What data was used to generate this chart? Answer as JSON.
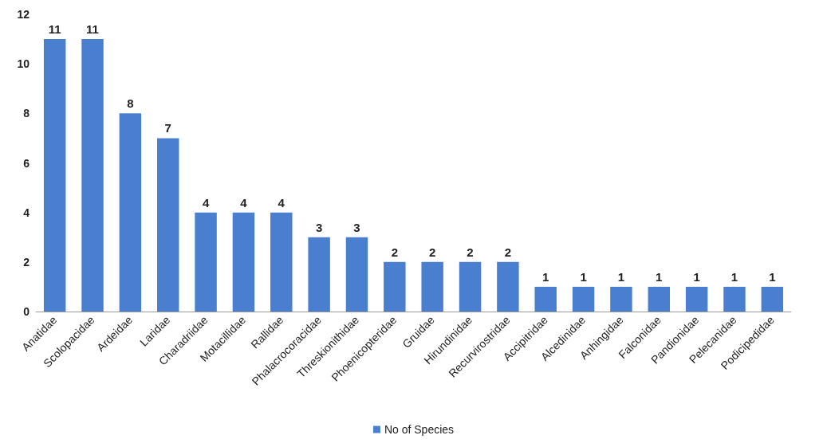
{
  "chart_data": {
    "type": "bar",
    "categories": [
      "Anatidae",
      "Scolopacidae",
      "Ardeidae",
      "Laridae",
      "Charadriidae",
      "Motacillidae",
      "Rallidae",
      "Phalacrocoracidae",
      "Threskionithidae",
      "Phoenicopteridae",
      "Gruidae",
      "Hirundinidae",
      "Recurvirostridae",
      "Accipitridae",
      "Alcedinidae",
      "Anhingidae",
      "Falconidae",
      "Pandionidae",
      "Pelecanidae",
      "Podicipedidae"
    ],
    "series": [
      {
        "name": "No of Species",
        "color": "#4a7fd0",
        "values": [
          11,
          11,
          8,
          7,
          4,
          4,
          4,
          3,
          3,
          2,
          2,
          2,
          2,
          1,
          1,
          1,
          1,
          1,
          1,
          1
        ]
      }
    ],
    "ylim": [
      0,
      12
    ],
    "yticks": [
      0,
      2,
      4,
      6,
      8,
      10,
      12
    ],
    "grid": false,
    "legend": "bottom",
    "data_labels": true
  }
}
